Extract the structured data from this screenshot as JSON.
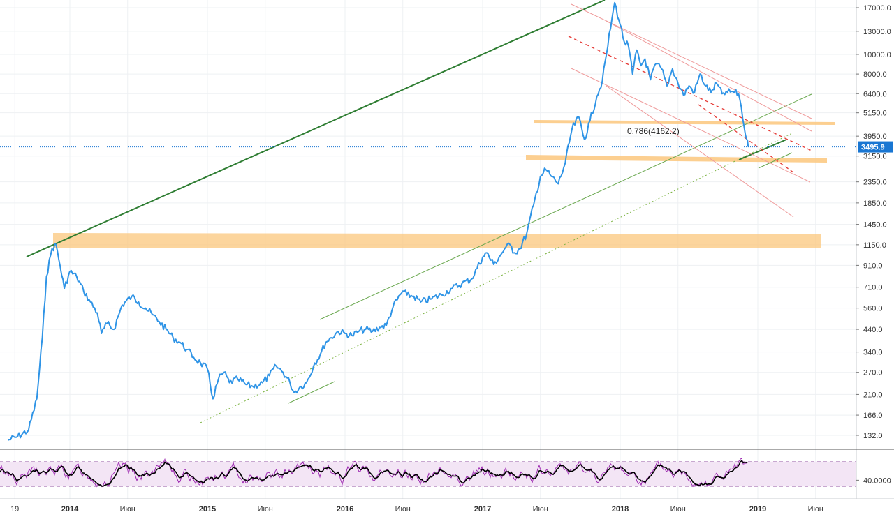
{
  "chart_data": [
    {
      "type": "line",
      "scale": "log",
      "ylim": [
        120,
        18500
      ],
      "y_ticks": [
        "17000.0",
        "13000.0",
        "10000.0",
        "8000.0",
        "6400.0",
        "5150.0",
        "3950.0",
        "3150.0",
        "2350.0",
        "1850.0",
        "1450.0",
        "1150.0",
        "910.0",
        "710.0",
        "560.0",
        "440.0",
        "340.0",
        "270.0",
        "210.0",
        "166.0",
        "132.0"
      ],
      "x_labels": [
        {
          "text": "19",
          "t": 2013.6,
          "bold": false
        },
        {
          "text": "2014",
          "t": 2014.0,
          "bold": true
        },
        {
          "text": "Июн",
          "t": 2014.42,
          "bold": false
        },
        {
          "text": "2015",
          "t": 2015.0,
          "bold": true
        },
        {
          "text": "Июн",
          "t": 2015.42,
          "bold": false
        },
        {
          "text": "2016",
          "t": 2016.0,
          "bold": true
        },
        {
          "text": "Июн",
          "t": 2016.42,
          "bold": false
        },
        {
          "text": "2017",
          "t": 2017.0,
          "bold": true
        },
        {
          "text": "Июн",
          "t": 2017.42,
          "bold": false
        },
        {
          "text": "2018",
          "t": 2018.0,
          "bold": true
        },
        {
          "text": "Июн",
          "t": 2018.42,
          "bold": false
        },
        {
          "text": "2019",
          "t": 2019.0,
          "bold": true
        },
        {
          "text": "Июн",
          "t": 2019.42,
          "bold": false
        }
      ],
      "current_price": "3495.9",
      "fib_label": "0.786(4162.2)",
      "series": [
        {
          "color": "#2f94e6",
          "points": [
            [
              2013.55,
              125
            ],
            [
              2013.62,
              130
            ],
            [
              2013.7,
              140
            ],
            [
              2013.76,
              200
            ],
            [
              2013.8,
              400
            ],
            [
              2013.83,
              800
            ],
            [
              2013.87,
              1100
            ],
            [
              2013.9,
              1150
            ],
            [
              2013.93,
              900
            ],
            [
              2013.96,
              700
            ],
            [
              2014.0,
              850
            ],
            [
              2014.05,
              800
            ],
            [
              2014.1,
              680
            ],
            [
              2014.15,
              600
            ],
            [
              2014.2,
              530
            ],
            [
              2014.23,
              420
            ],
            [
              2014.27,
              470
            ],
            [
              2014.32,
              440
            ],
            [
              2014.38,
              580
            ],
            [
              2014.45,
              640
            ],
            [
              2014.5,
              600
            ],
            [
              2014.55,
              560
            ],
            [
              2014.6,
              520
            ],
            [
              2014.65,
              480
            ],
            [
              2014.7,
              440
            ],
            [
              2014.75,
              400
            ],
            [
              2014.8,
              380
            ],
            [
              2014.85,
              350
            ],
            [
              2014.9,
              320
            ],
            [
              2014.95,
              300
            ],
            [
              2015.0,
              280
            ],
            [
              2015.04,
              200
            ],
            [
              2015.08,
              250
            ],
            [
              2015.12,
              270
            ],
            [
              2015.16,
              240
            ],
            [
              2015.22,
              250
            ],
            [
              2015.28,
              235
            ],
            [
              2015.33,
              230
            ],
            [
              2015.4,
              240
            ],
            [
              2015.45,
              260
            ],
            [
              2015.5,
              290
            ],
            [
              2015.55,
              270
            ],
            [
              2015.6,
              240
            ],
            [
              2015.63,
              215
            ],
            [
              2015.68,
              230
            ],
            [
              2015.72,
              240
            ],
            [
              2015.78,
              300
            ],
            [
              2015.82,
              330
            ],
            [
              2015.86,
              380
            ],
            [
              2015.9,
              400
            ],
            [
              2015.95,
              430
            ],
            [
              2016.0,
              420
            ],
            [
              2016.05,
              410
            ],
            [
              2016.1,
              430
            ],
            [
              2016.15,
              440
            ],
            [
              2016.2,
              430
            ],
            [
              2016.25,
              450
            ],
            [
              2016.3,
              460
            ],
            [
              2016.35,
              570
            ],
            [
              2016.42,
              680
            ],
            [
              2016.45,
              650
            ],
            [
              2016.5,
              640
            ],
            [
              2016.55,
              600
            ],
            [
              2016.62,
              620
            ],
            [
              2016.7,
              650
            ],
            [
              2016.78,
              700
            ],
            [
              2016.85,
              740
            ],
            [
              2016.92,
              780
            ],
            [
              2017.0,
              1000
            ],
            [
              2017.03,
              1050
            ],
            [
              2017.08,
              920
            ],
            [
              2017.12,
              1000
            ],
            [
              2017.16,
              1100
            ],
            [
              2017.2,
              1150
            ],
            [
              2017.23,
              1050
            ],
            [
              2017.27,
              1100
            ],
            [
              2017.32,
              1300
            ],
            [
              2017.37,
              1800
            ],
            [
              2017.42,
              2500
            ],
            [
              2017.46,
              2700
            ],
            [
              2017.5,
              2500
            ],
            [
              2017.55,
              2300
            ],
            [
              2017.6,
              2900
            ],
            [
              2017.65,
              4300
            ],
            [
              2017.7,
              4900
            ],
            [
              2017.74,
              3800
            ],
            [
              2017.78,
              4700
            ],
            [
              2017.83,
              6200
            ],
            [
              2017.87,
              7400
            ],
            [
              2017.9,
              10000
            ],
            [
              2017.94,
              15000
            ],
            [
              2017.96,
              18000
            ],
            [
              2018.0,
              14000
            ],
            [
              2018.03,
              11500
            ],
            [
              2018.06,
              11000
            ],
            [
              2018.09,
              8000
            ],
            [
              2018.12,
              10500
            ],
            [
              2018.15,
              8800
            ],
            [
              2018.18,
              9500
            ],
            [
              2018.22,
              7500
            ],
            [
              2018.26,
              9000
            ],
            [
              2018.3,
              8500
            ],
            [
              2018.34,
              7000
            ],
            [
              2018.38,
              8500
            ],
            [
              2018.42,
              7200
            ],
            [
              2018.46,
              6300
            ],
            [
              2018.5,
              7000
            ],
            [
              2018.54,
              6500
            ],
            [
              2018.58,
              8000
            ],
            [
              2018.62,
              7000
            ],
            [
              2018.66,
              6500
            ],
            [
              2018.7,
              7200
            ],
            [
              2018.74,
              6400
            ],
            [
              2018.78,
              6500
            ],
            [
              2018.82,
              6550
            ],
            [
              2018.86,
              6400
            ],
            [
              2018.88,
              5500
            ],
            [
              2018.9,
              4400
            ],
            [
              2018.92,
              3800
            ],
            [
              2018.93,
              3500
            ]
          ]
        }
      ]
    },
    {
      "type": "line",
      "ylim": [
        10,
        90
      ],
      "y_ticks": [
        "40.0000"
      ],
      "band": [
        30,
        70
      ],
      "series": [
        {
          "color": "#9c27b0"
        },
        {
          "color": "#000000"
        }
      ]
    }
  ],
  "colors": {
    "price": "#2f94e6",
    "support_band": "#fbc77c",
    "trend_green": "#2e7d32",
    "trend_light_green": "#6aa84f",
    "resistance_red": "#ef9a9a",
    "dashed_red": "#e53935",
    "badge": "#1976d2",
    "osc_band": "#f3e5f5"
  }
}
